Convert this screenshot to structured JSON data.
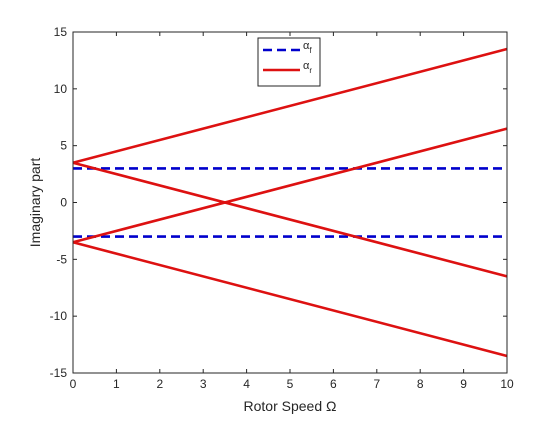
{
  "chart_data": {
    "type": "line",
    "title": "",
    "xlabel": "Rotor Speed Ω",
    "ylabel": "Imaginary part",
    "xlim": [
      0,
      10
    ],
    "ylim": [
      -15,
      15
    ],
    "xticks": [
      0,
      1,
      2,
      3,
      4,
      5,
      6,
      7,
      8,
      9,
      10
    ],
    "yticks": [
      -15,
      -10,
      -5,
      0,
      5,
      10,
      15
    ],
    "grid": false,
    "legend": {
      "position": "top-center",
      "entries": [
        {
          "symbol": "α",
          "subscript": "f",
          "color": "#0000CC",
          "style": "dashed"
        },
        {
          "symbol": "α",
          "subscript": "r",
          "color": "#DD1111",
          "style": "solid"
        }
      ]
    },
    "series": [
      {
        "legend_index": 0,
        "color": "#0000CC",
        "style": "dashed",
        "x": [
          0,
          10
        ],
        "y": [
          3.0,
          3.0
        ]
      },
      {
        "legend_index": 0,
        "color": "#0000CC",
        "style": "dashed",
        "x": [
          0,
          10
        ],
        "y": [
          -3.0,
          -3.0
        ]
      },
      {
        "legend_index": 1,
        "color": "#DD1111",
        "style": "solid",
        "x": [
          0,
          10
        ],
        "y": [
          3.5,
          13.5
        ]
      },
      {
        "legend_index": 1,
        "color": "#DD1111",
        "style": "solid",
        "x": [
          0,
          10
        ],
        "y": [
          3.5,
          -6.5
        ]
      },
      {
        "legend_index": 1,
        "color": "#DD1111",
        "style": "solid",
        "x": [
          0,
          10
        ],
        "y": [
          -3.5,
          6.5
        ]
      },
      {
        "legend_index": 1,
        "color": "#DD1111",
        "style": "solid",
        "x": [
          0,
          10
        ],
        "y": [
          -3.5,
          -13.5
        ]
      }
    ]
  }
}
